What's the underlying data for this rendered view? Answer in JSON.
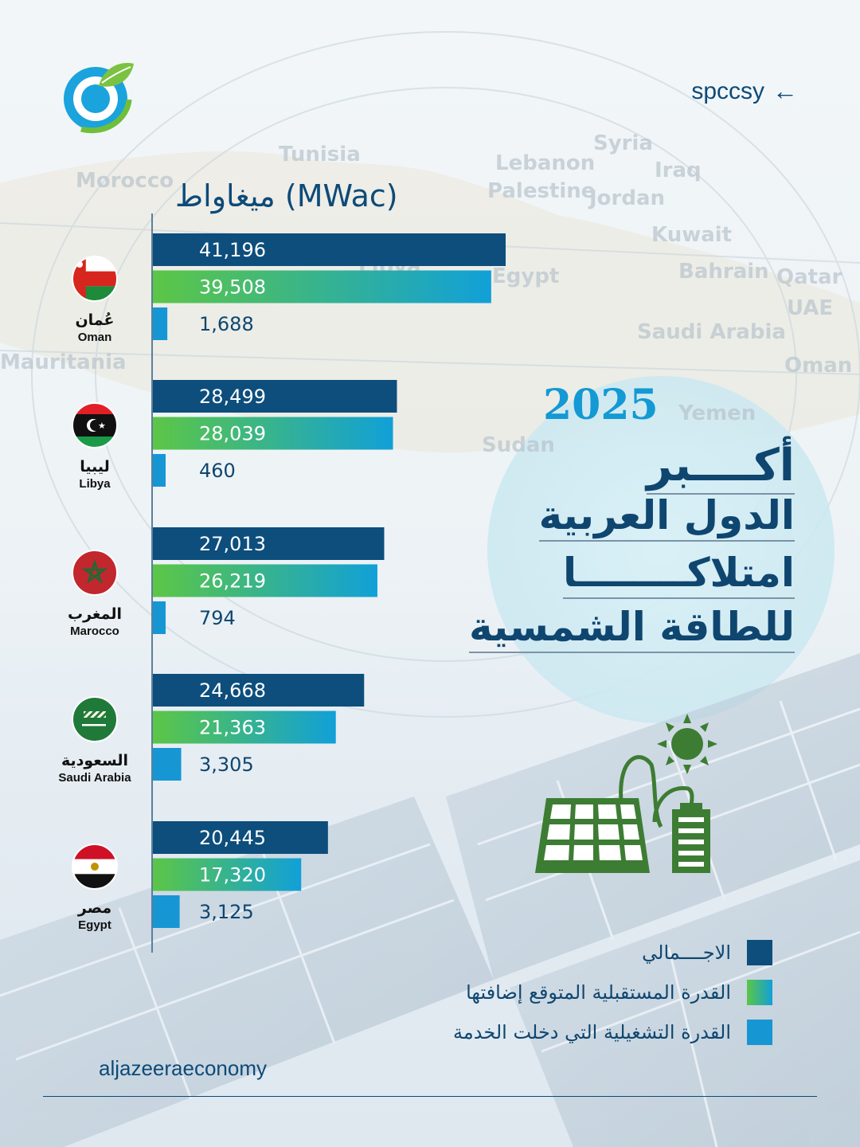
{
  "header": {
    "handle": "spccsy",
    "arrow": "←"
  },
  "unit_label": "(MWac) ميغاواط",
  "title": {
    "year": "2025",
    "line1": "أكــــبر",
    "line2": "الدول العربية",
    "line3": "امتلاكــــــــا",
    "line4": "للطاقة الشمسية"
  },
  "map_labels": [
    "Tunisia",
    "Lebanon",
    "Palestine",
    "Syria",
    "Iraq",
    "Jordan",
    "Kuwait",
    "Egypt",
    "Bahrain",
    "Qatar",
    "UAE",
    "Saudi Arabia",
    "Oman",
    "Morocco",
    "Mauritania",
    "Sudan",
    "Yemen",
    "Libya"
  ],
  "legend": [
    {
      "label": "الاجــــمالي",
      "color": "#0d4e7c"
    },
    {
      "label": "القدرة المستقبلية المتوقع إضافتها",
      "color": "#46c24e"
    },
    {
      "label": "القدرة التشغيلية التي دخلت الخدمة",
      "color": "#1796d4"
    }
  ],
  "colors": {
    "total": "#0d4e7c",
    "future_start": "#5cc646",
    "future_end": "#11a0d8",
    "operational": "#1796d4",
    "text_dark": "#0f4670"
  },
  "footer": {
    "source": "aljazeeraeconomy"
  },
  "chart_data": {
    "type": "bar",
    "orientation": "horizontal",
    "title": "أكبر الدول العربية امتلاكا للطاقة الشمسية 2025",
    "xlabel": "(MWac) ميغاواط",
    "xlim": [
      0,
      41196
    ],
    "categories": [
      {
        "ar": "عُمان",
        "en": "Oman",
        "flag": "oman-flag-icon"
      },
      {
        "ar": "ليبيا",
        "en": "Libya",
        "flag": "libya-flag-icon"
      },
      {
        "ar": "المغرب",
        "en": "Marocco",
        "flag": "morocco-flag-icon"
      },
      {
        "ar": "السعودية",
        "en": "Saudi Arabia",
        "flag": "saudi-flag-icon"
      },
      {
        "ar": "مصر",
        "en": "Egypt",
        "flag": "egypt-flag-icon"
      }
    ],
    "series": [
      {
        "name": "الاجــــمالي",
        "values": [
          41196,
          28499,
          27013,
          24668,
          20445
        ],
        "labels": [
          "41,196",
          "28,499",
          "27,013",
          "24,668",
          "20,445"
        ]
      },
      {
        "name": "القدرة المستقبلية المتوقع إضافتها",
        "values": [
          39508,
          28039,
          26219,
          21363,
          17320
        ],
        "labels": [
          "39,508",
          "28,039",
          "26,219",
          "21,363",
          "17,320"
        ]
      },
      {
        "name": "القدرة التشغيلية التي دخلت الخدمة",
        "values": [
          1688,
          460,
          794,
          3305,
          3125
        ],
        "labels": [
          "1,688",
          "460",
          "794",
          "3,305",
          "3,125"
        ]
      }
    ]
  }
}
